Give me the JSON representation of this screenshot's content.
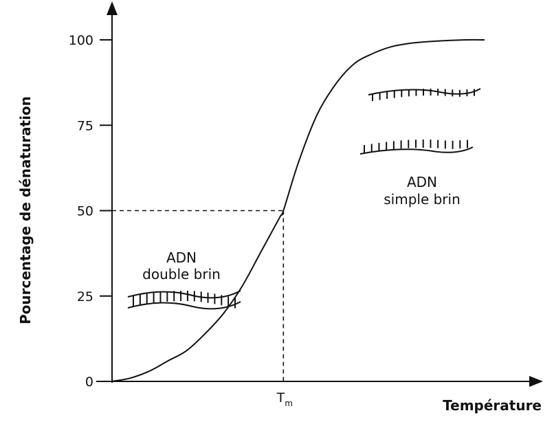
{
  "chart_data": {
    "type": "line",
    "xlabel": "Température",
    "ylabel": "Pourcentage de dénaturation",
    "ylim": [
      0,
      100
    ],
    "yticks": [
      "0",
      "25",
      "50",
      "75",
      "100"
    ],
    "ytick_values": [
      0,
      25,
      50,
      75,
      100
    ],
    "x_marker": {
      "label": "T",
      "subscript": "m",
      "value": 0.46,
      "y_value": 50
    },
    "series": [
      {
        "x": [
          0,
          0.05,
          0.1,
          0.15,
          0.2,
          0.25,
          0.3,
          0.35,
          0.4,
          0.45,
          0.46,
          0.5,
          0.55,
          0.6,
          0.65,
          0.7,
          0.75,
          0.8,
          0.85,
          0.9,
          0.95,
          1.0
        ],
        "values": [
          0,
          1,
          3,
          6,
          9,
          14,
          20,
          28,
          38,
          48,
          50,
          64,
          78,
          87,
          93,
          96,
          98,
          99,
          99.5,
          99.8,
          100,
          100
        ]
      }
    ],
    "grid": false,
    "annotations": [
      {
        "lines": [
          "ADN",
          "double brin"
        ],
        "illustration": "double-strand"
      },
      {
        "lines": [
          "ADN",
          "simple brin"
        ],
        "illustration": "single-strands"
      }
    ]
  }
}
